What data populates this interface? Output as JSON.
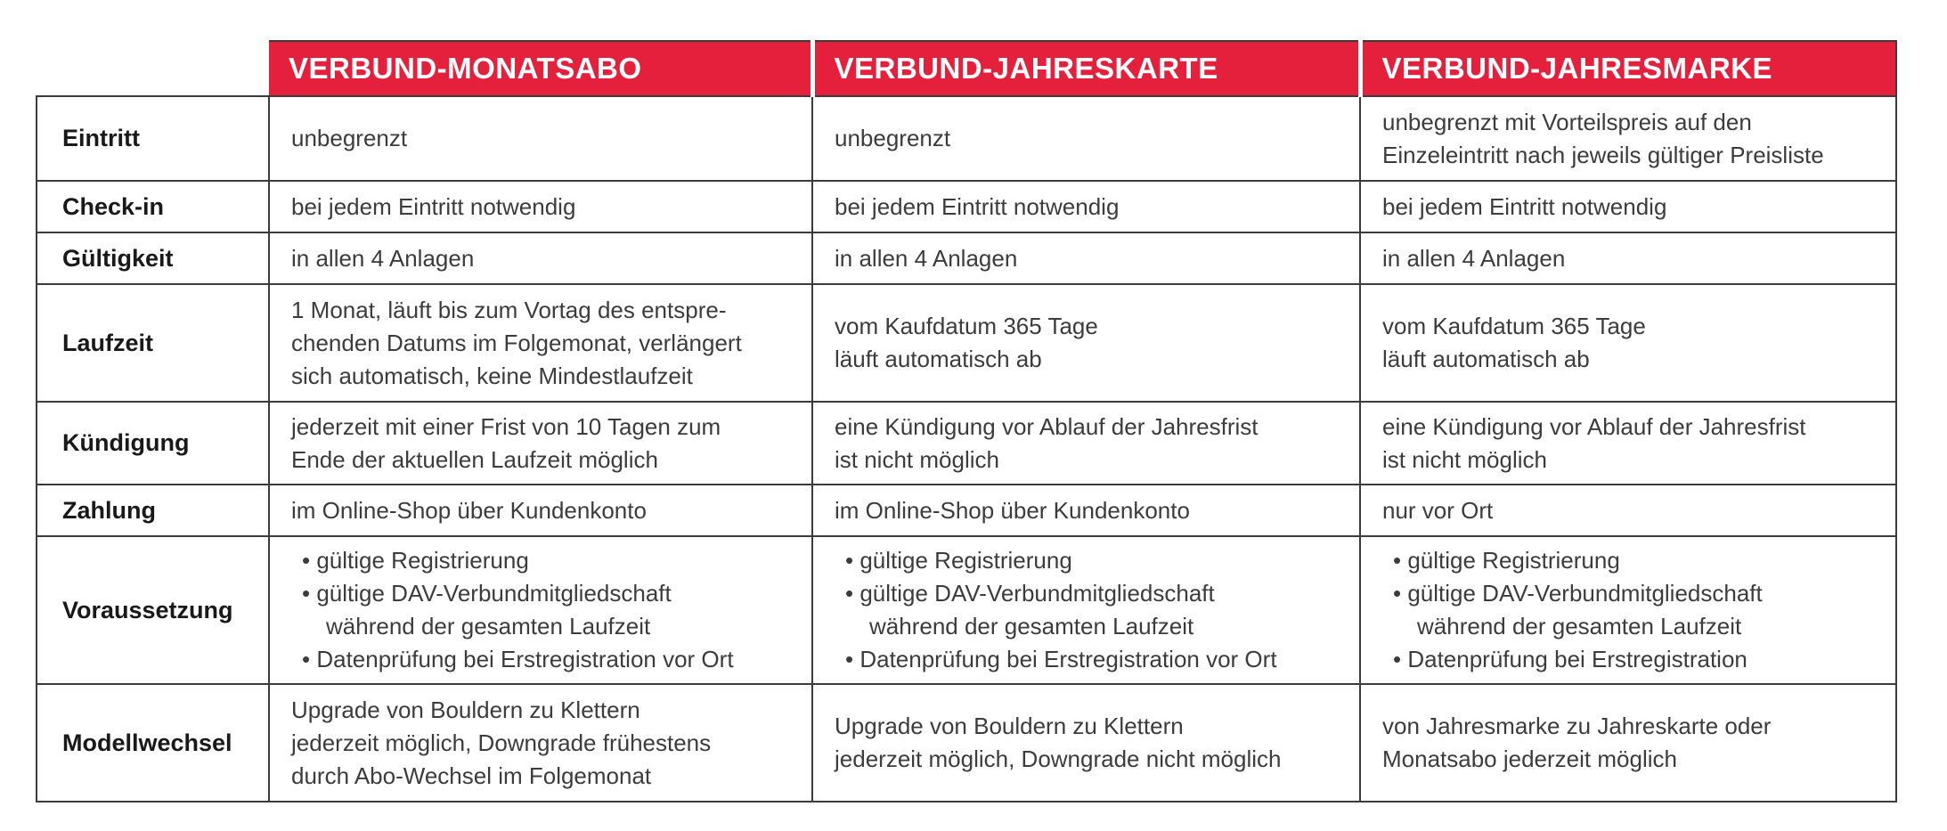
{
  "colors": {
    "header_red": "#e5203c",
    "border": "#3b3b3b",
    "text": "#3c3c3c"
  },
  "table": {
    "columns": [
      {
        "label": "VERBUND-MONATSABO"
      },
      {
        "label": "VERBUND-JAHRESKARTE"
      },
      {
        "label": "VERBUND-JAHRESMARKE"
      }
    ],
    "rows": [
      {
        "key": "eintritt",
        "label": "Eintritt",
        "cells": [
          [
            "unbegrenzt"
          ],
          [
            "unbegrenzt"
          ],
          [
            "unbegrenzt mit Vorteilspreis auf den",
            "Einzeleintritt nach jeweils gültiger Preisliste"
          ]
        ]
      },
      {
        "key": "checkin",
        "label": "Check-in",
        "cells": [
          [
            "bei jedem Eintritt notwendig"
          ],
          [
            "bei jedem Eintritt notwendig"
          ],
          [
            "bei jedem Eintritt notwendig"
          ]
        ]
      },
      {
        "key": "gueltigkeit",
        "label": "Gültigkeit",
        "cells": [
          [
            "in allen 4 Anlagen"
          ],
          [
            "in allen 4 Anlagen"
          ],
          [
            "in allen 4 Anlagen"
          ]
        ]
      },
      {
        "key": "laufzeit",
        "label": "Laufzeit",
        "cells": [
          [
            "1 Monat, läuft bis zum Vortag des entspre-",
            "chenden Datums im Folgemonat, verlängert",
            "sich automatisch, keine Mindestlaufzeit"
          ],
          [
            "vom Kaufdatum 365 Tage",
            "läuft automatisch ab"
          ],
          [
            "vom Kaufdatum 365 Tage",
            "läuft automatisch ab"
          ]
        ]
      },
      {
        "key": "kuendigung",
        "label": "Kündigung",
        "cells": [
          [
            "jederzeit mit einer Frist von 10 Tagen zum",
            "Ende der aktuellen Laufzeit möglich"
          ],
          [
            "eine Kündigung vor Ablauf der Jahresfrist",
            "ist nicht möglich"
          ],
          [
            "eine Kündigung vor Ablauf der Jahresfrist",
            "ist nicht möglich"
          ]
        ]
      },
      {
        "key": "zahlung",
        "label": "Zahlung",
        "cells": [
          [
            "im Online-Shop über Kundenkonto"
          ],
          [
            "im Online-Shop über Kundenkonto"
          ],
          [
            "nur vor Ort"
          ]
        ]
      },
      {
        "key": "voraussetzung",
        "label": "Voraussetzung",
        "cells": [
          [
            "• gültige Registrierung",
            "• gültige DAV-Verbundmitgliedschaft",
            "während der gesamten Laufzeit",
            "• Datenprüfung bei Erstregistration vor Ort"
          ],
          [
            "• gültige Registrierung",
            "• gültige DAV-Verbundmitgliedschaft",
            "während der gesamten Laufzeit",
            "• Datenprüfung bei Erstregistration vor Ort"
          ],
          [
            "• gültige Registrierung",
            "• gültige DAV-Verbundmitgliedschaft",
            "während der gesamten Laufzeit",
            "• Datenprüfung bei Erstregistration"
          ]
        ]
      },
      {
        "key": "modellwechsel",
        "label": "Modellwechsel",
        "cells": [
          [
            "Upgrade von Bouldern zu Klettern",
            "jederzeit möglich, Downgrade frühestens",
            "durch Abo-Wechsel im Folgemonat"
          ],
          [
            "Upgrade von Bouldern zu Klettern",
            "jederzeit möglich, Downgrade nicht möglich"
          ],
          [
            "von Jahresmarke zu Jahreskarte oder",
            "Monatsabo jederzeit möglich"
          ]
        ]
      }
    ]
  }
}
